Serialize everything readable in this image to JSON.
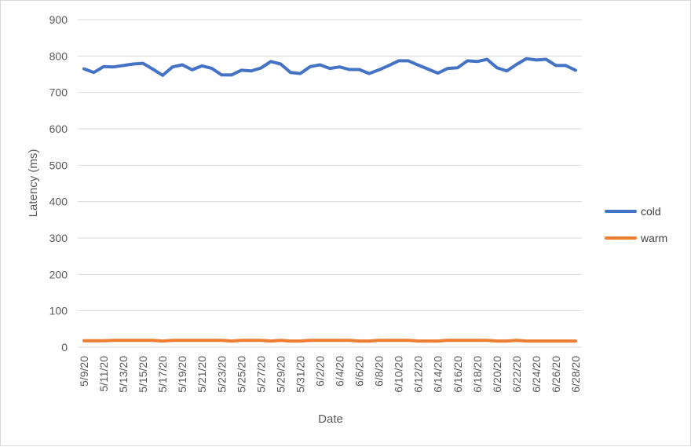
{
  "chart_data": {
    "type": "line",
    "xlabel": "Date",
    "ylabel": "Latency (ms)",
    "ylim": [
      0,
      900
    ],
    "yticks": [
      0,
      100,
      200,
      300,
      400,
      500,
      600,
      700,
      800,
      900
    ],
    "grid": true,
    "legend_position": "right",
    "x": [
      "5/9/20",
      "5/10/20",
      "5/11/20",
      "5/12/20",
      "5/13/20",
      "5/14/20",
      "5/15/20",
      "5/16/20",
      "5/17/20",
      "5/18/20",
      "5/19/20",
      "5/20/20",
      "5/21/20",
      "5/22/20",
      "5/23/20",
      "5/24/20",
      "5/25/20",
      "5/26/20",
      "5/27/20",
      "5/28/20",
      "5/29/20",
      "5/30/20",
      "5/31/20",
      "6/1/20",
      "6/2/20",
      "6/3/20",
      "6/4/20",
      "6/5/20",
      "6/6/20",
      "6/7/20",
      "6/8/20",
      "6/9/20",
      "6/10/20",
      "6/11/20",
      "6/12/20",
      "6/13/20",
      "6/14/20",
      "6/15/20",
      "6/16/20",
      "6/17/20",
      "6/18/20",
      "6/19/20",
      "6/20/20",
      "6/21/20",
      "6/22/20",
      "6/23/20",
      "6/24/20",
      "6/25/20",
      "6/26/20",
      "6/27/20",
      "6/28/20"
    ],
    "x_tick_labels": [
      "5/9/20",
      "5/11/20",
      "5/13/20",
      "5/15/20",
      "5/17/20",
      "5/19/20",
      "5/21/20",
      "5/23/20",
      "5/25/20",
      "5/27/20",
      "5/29/20",
      "5/31/20",
      "6/2/20",
      "6/4/20",
      "6/6/20",
      "6/8/20",
      "6/10/20",
      "6/12/20",
      "6/14/20",
      "6/16/20",
      "6/18/20",
      "6/20/20",
      "6/22/20",
      "6/24/20",
      "6/26/20",
      "6/28/20"
    ],
    "series": [
      {
        "name": "cold",
        "color": "#4472c4",
        "values": [
          765,
          755,
          771,
          770,
          774,
          778,
          780,
          764,
          747,
          770,
          776,
          762,
          773,
          766,
          748,
          748,
          761,
          759,
          767,
          785,
          778,
          755,
          752,
          771,
          776,
          766,
          770,
          763,
          763,
          752,
          762,
          774,
          787,
          787,
          775,
          764,
          753,
          766,
          768,
          787,
          785,
          791,
          768,
          759,
          777,
          793,
          789,
          791,
          774,
          774,
          761
        ]
      },
      {
        "name": "warm",
        "color": "#ed7d31",
        "values": [
          18,
          18,
          18,
          19,
          19,
          19,
          19,
          19,
          17,
          19,
          19,
          19,
          19,
          19,
          19,
          17,
          19,
          19,
          19,
          17,
          19,
          17,
          17,
          19,
          19,
          19,
          19,
          19,
          17,
          17,
          19,
          19,
          19,
          19,
          17,
          17,
          17,
          19,
          19,
          19,
          19,
          19,
          17,
          17,
          19,
          17,
          17,
          17,
          17,
          17,
          17
        ]
      }
    ]
  }
}
